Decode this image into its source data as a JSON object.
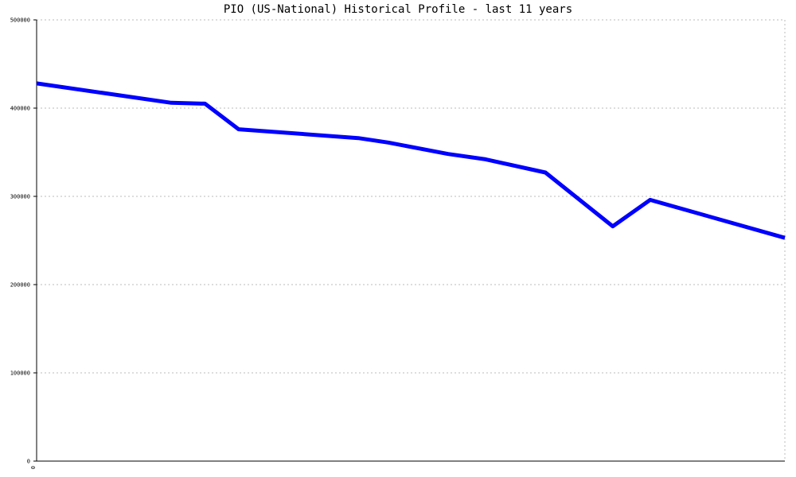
{
  "chart_data": {
    "type": "line",
    "title": "PIO (US-National) Historical Profile - last 11 years",
    "xlabel": "",
    "ylabel": "",
    "x_tick_labels": [
      "0"
    ],
    "y_tick_labels": [
      "0",
      "100000",
      "200000",
      "300000",
      "400000",
      "500000"
    ],
    "ylim": [
      0,
      500000
    ],
    "grid": true,
    "legend": "none",
    "series": [
      {
        "color": "#0000ff",
        "x": [
          0,
          0.18,
          0.225,
          0.27,
          0.43,
          0.47,
          0.55,
          0.6,
          0.68,
          0.77,
          0.82,
          1.0
        ],
        "values": [
          428000,
          406000,
          405000,
          376000,
          366000,
          361000,
          348000,
          342000,
          327000,
          266000,
          296000,
          253000
        ]
      }
    ]
  },
  "colors": {
    "line": "#0000ff",
    "grid": "#bbbbbb",
    "axis": "#000000"
  }
}
